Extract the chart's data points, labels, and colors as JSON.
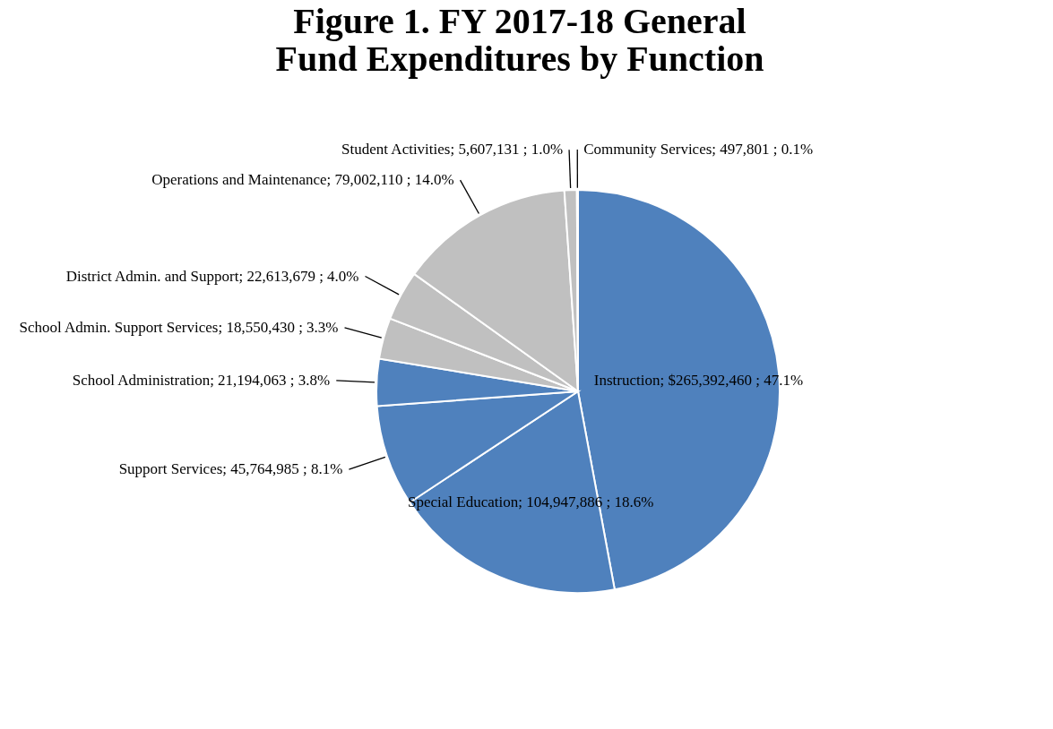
{
  "chart_data": {
    "type": "pie",
    "title": "Figure 1. FY 2017-18 General Fund Expenditures by Function",
    "categories": [
      "Instruction",
      "Special Education",
      "Support Services",
      "School Administration",
      "School Admin. Support Services",
      "District Admin. and Support",
      "Operations and Maintenance",
      "Student Activities",
      "Community Services"
    ],
    "values": [
      265392460,
      104947886,
      45764985,
      21194063,
      18550430,
      22613679,
      79002110,
      5607131,
      497801
    ],
    "value_labels": [
      "$265,392,460 ; 47.1%",
      "104,947,886 ; 18.6%",
      "45,764,985 ; 8.1%",
      "21,194,063 ; 3.8%",
      "18,550,430 ; 3.3%",
      "22,613,679 ; 4.0%",
      "79,002,110 ; 14.0%",
      "5,607,131 ; 1.0%",
      "497,801 ; 0.1%"
    ],
    "colors": [
      "#4f81bd",
      "#4f81bd",
      "#4f81bd",
      "#4f81bd",
      "#c0c0c0",
      "#c0c0c0",
      "#c0c0c0",
      "#c0c0c0",
      "#c0c0c0"
    ]
  }
}
